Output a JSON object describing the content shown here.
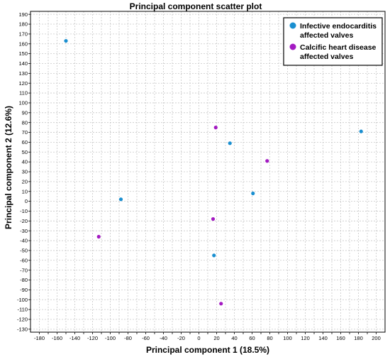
{
  "chart_data": {
    "type": "scatter",
    "title": "Principal component scatter plot",
    "xlabel": "Principal component 1 (18.5%)",
    "ylabel": "Principal component 2 (12.6%)",
    "xlim": [
      -190,
      210
    ],
    "ylim": [
      -133,
      193
    ],
    "x_ticks": [
      -180,
      -170,
      -160,
      -150,
      -140,
      -130,
      -120,
      -110,
      -100,
      -90,
      -80,
      -70,
      -60,
      -50,
      -40,
      -30,
      -20,
      -10,
      0,
      10,
      20,
      30,
      40,
      50,
      60,
      70,
      80,
      90,
      100,
      110,
      120,
      130,
      140,
      150,
      160,
      170,
      180,
      190,
      200
    ],
    "x_tick_labels": [
      "-180",
      "-160",
      "-140",
      "-120",
      "-100",
      "-80",
      "-60",
      "-40",
      "-20",
      "0",
      "20",
      "40",
      "60",
      "80",
      "100",
      "120",
      "140",
      "160",
      "180",
      "200"
    ],
    "y_ticks": [
      190,
      180,
      170,
      160,
      150,
      140,
      130,
      120,
      110,
      100,
      90,
      80,
      70,
      60,
      50,
      40,
      30,
      20,
      10,
      0,
      -10,
      -20,
      -30,
      -40,
      -50,
      -60,
      -70,
      -80,
      -90,
      -100,
      -110,
      -120,
      -130
    ],
    "grid": true,
    "legend_position": "top-right",
    "series": [
      {
        "name": "Infective endocarditis affected valves",
        "color": "#1a8fd0",
        "points": [
          {
            "x": -150,
            "y": 163
          },
          {
            "x": -88,
            "y": 2
          },
          {
            "x": 35,
            "y": 59
          },
          {
            "x": 61,
            "y": 8
          },
          {
            "x": 183,
            "y": 71
          },
          {
            "x": 17,
            "y": -55
          }
        ]
      },
      {
        "name": "Calcific heart disease affected valves",
        "color": "#a31ac2",
        "points": [
          {
            "x": 19,
            "y": 75
          },
          {
            "x": 77,
            "y": 41
          },
          {
            "x": 16,
            "y": -18
          },
          {
            "x": -113,
            "y": -36
          },
          {
            "x": 25,
            "y": -104
          }
        ]
      }
    ]
  }
}
